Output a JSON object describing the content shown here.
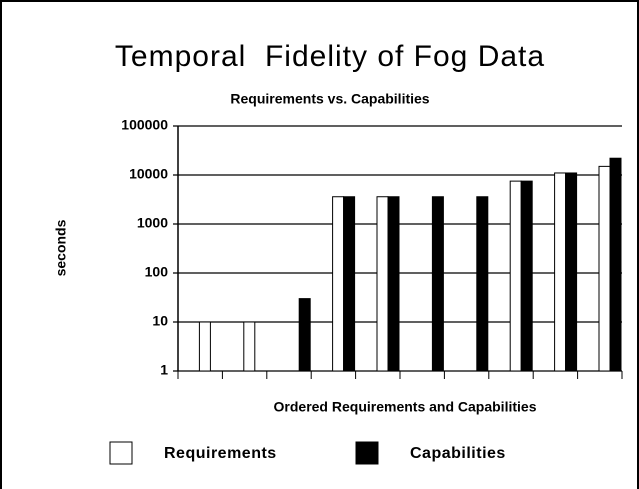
{
  "chart_data": {
    "type": "bar",
    "title": "Temporal  Fidelity of Fog Data",
    "subtitle": "Requirements vs. Capabilities",
    "y_label": "seconds",
    "x_label": "Ordered Requirements and Capabilities",
    "categories": [
      null,
      null,
      null,
      null,
      null,
      null,
      null,
      null,
      null,
      null
    ],
    "series": [
      {
        "name": "Requirements",
        "color": "#ffffff",
        "values": [
          10,
          10,
          null,
          3600,
          3600,
          null,
          null,
          7500,
          11000,
          15000
        ]
      },
      {
        "name": "Capabilities",
        "color": "#000000",
        "values": [
          null,
          null,
          30,
          3600,
          3600,
          3600,
          3600,
          7500,
          11000,
          22000
        ]
      }
    ],
    "ylim": [
      1,
      100000
    ],
    "yticks": [
      1,
      10,
      100,
      1000,
      10000,
      100000
    ],
    "log_scale": true,
    "grid": true,
    "legend": "bottom"
  }
}
